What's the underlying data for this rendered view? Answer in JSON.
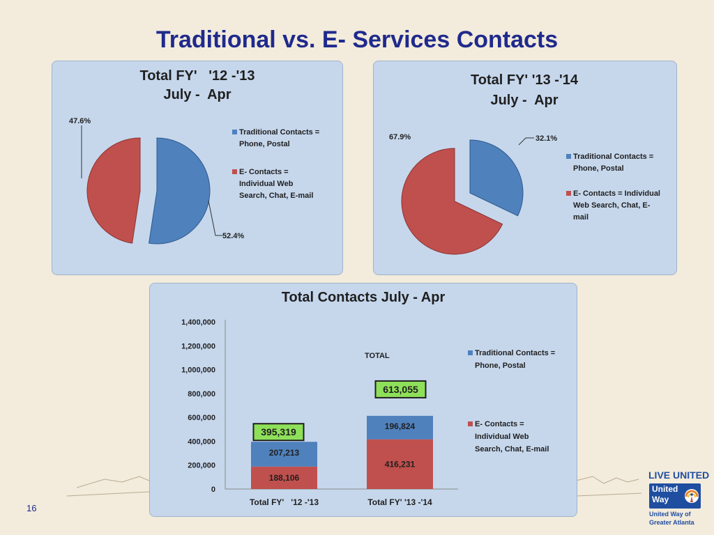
{
  "slide": {
    "title": "Traditional vs. E- Services Contacts",
    "page_number": "16",
    "logo": {
      "tagline": "LIVE UNITED",
      "name_line1": "United",
      "name_line2": "Way",
      "sub_line1": "United Way of",
      "sub_line2": "Greater Atlanta"
    }
  },
  "colors": {
    "traditional": "#4f81bd",
    "econtacts": "#c0504d",
    "panel": "#c6d7ec",
    "total_label_bg": "#8ee05a",
    "title": "#1f2a8c"
  },
  "chart_data": [
    {
      "type": "pie",
      "title_line1": "Total FY'   '12 -'13",
      "title_line2": "July -  Apr",
      "slices": [
        {
          "name": "Traditional Contacts = Phone, Postal",
          "value": 52.4,
          "label": "52.4%"
        },
        {
          "name": "E- Contacts = Individual Web Search, Chat, E-mail",
          "value": 47.6,
          "label": "47.6%"
        }
      ],
      "legend": {
        "traditional": [
          "Traditional Contacts =",
          "Phone, Postal"
        ],
        "econtacts": [
          "E- Contacts =",
          "Individual Web",
          "Search, Chat, E-mail"
        ]
      },
      "legend_position": "right"
    },
    {
      "type": "pie",
      "title_line1": "Total FY' '13 -'14",
      "title_line2": "July -  Apr",
      "slices": [
        {
          "name": "Traditional Contacts = Phone, Postal",
          "value": 32.1,
          "label": "32.1%"
        },
        {
          "name": "E- Contacts = Individual Web Search, Chat, E-mail",
          "value": 67.9,
          "label": "67.9%"
        }
      ],
      "legend": {
        "traditional": [
          "Traditional Contacts =",
          "Phone, Postal"
        ],
        "econtacts": [
          "E- Contacts = Individual",
          "Web Search, Chat, E-",
          "mail"
        ]
      },
      "legend_position": "right"
    },
    {
      "type": "bar",
      "stacked": true,
      "title": "Total Contacts July - Apr",
      "categories": [
        "Total FY'   '12 -'13",
        "Total FY' '13 -'14"
      ],
      "series": [
        {
          "name": "E- Contacts = Individual Web Search, Chat, E-mail",
          "values": [
            188106,
            416231
          ],
          "labels": [
            "188,106",
            "416,231"
          ]
        },
        {
          "name": "Traditional Contacts = Phone, Postal",
          "values": [
            207213,
            196824
          ],
          "labels": [
            "207,213",
            "196,824"
          ]
        }
      ],
      "totals": [
        "395,319",
        "613,055"
      ],
      "total_annotation": "TOTAL",
      "ylim": [
        0,
        1400000
      ],
      "yticks": [
        "0",
        "200,000",
        "400,000",
        "600,000",
        "800,000",
        "1,000,000",
        "1,200,000",
        "1,400,000"
      ],
      "legend": {
        "traditional": [
          "Traditional Contacts =",
          "Phone, Postal"
        ],
        "econtacts": [
          "E- Contacts =",
          "Individual Web",
          "Search, Chat, E-mail"
        ]
      },
      "legend_position": "right",
      "grid": false
    }
  ]
}
